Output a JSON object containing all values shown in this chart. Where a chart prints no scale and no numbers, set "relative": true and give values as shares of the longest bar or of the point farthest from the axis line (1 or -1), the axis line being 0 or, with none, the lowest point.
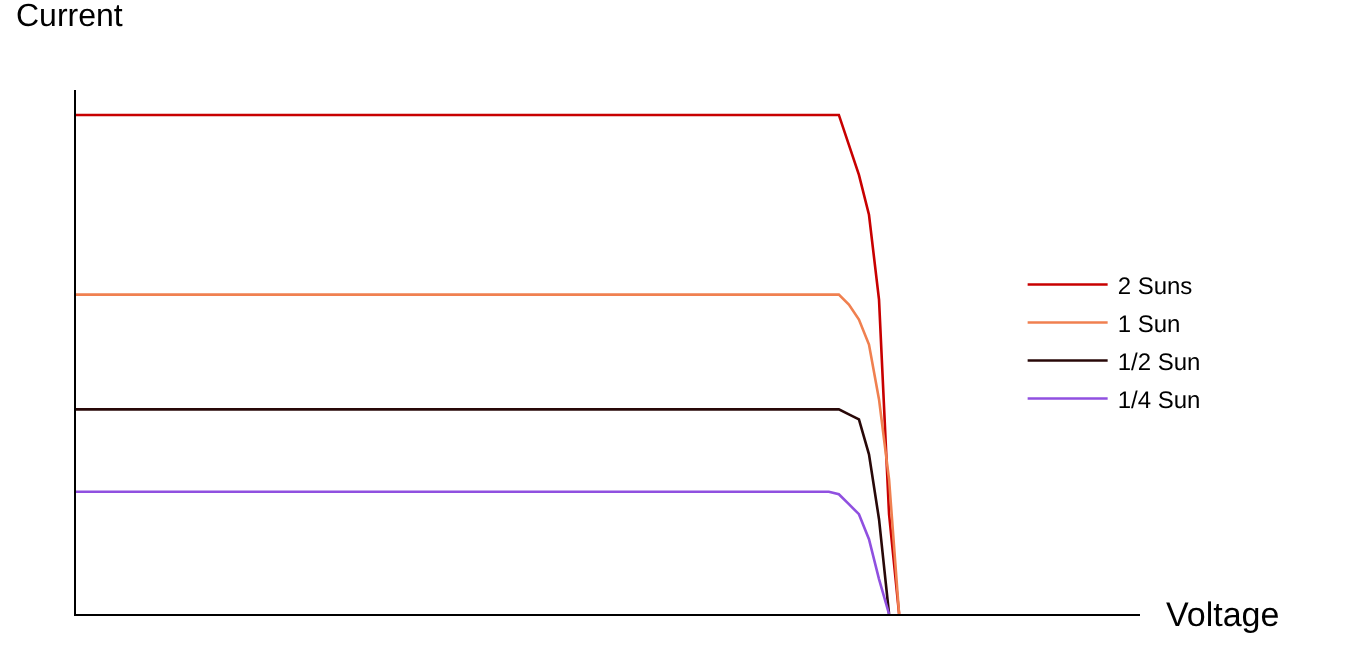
{
  "chart_data": {
    "type": "line",
    "relative": true,
    "xlabel": "Voltage",
    "ylabel": "Current",
    "legend": "right",
    "marker": "none",
    "line_style": "solid",
    "categories": [
      null,
      null,
      null,
      null,
      null,
      null,
      null,
      null,
      null,
      null,
      null,
      null,
      null,
      null,
      null,
      null,
      null,
      null,
      null,
      null,
      null,
      null,
      null,
      null,
      null,
      null,
      null,
      null,
      null,
      null,
      null,
      null,
      null,
      null,
      null,
      null,
      null,
      null,
      null,
      null,
      null,
      null,
      null,
      null,
      null,
      null,
      null,
      null,
      null,
      null,
      null,
      null,
      null,
      null,
      null,
      null,
      null,
      null,
      null,
      null,
      null,
      null,
      null,
      null,
      null,
      null,
      null,
      null,
      null,
      null,
      null,
      null,
      null,
      null,
      null,
      null,
      null,
      null,
      null,
      null,
      null,
      null,
      null,
      null,
      null,
      null,
      null,
      null,
      null,
      null,
      null,
      null,
      null,
      null,
      null,
      null,
      null,
      null,
      null,
      null,
      null,
      null,
      null,
      null,
      null,
      null,
      null
    ],
    "series": [
      {
        "name": "2 Suns",
        "color": "#c80000",
        "values": [
          1,
          1,
          1,
          1,
          1,
          1,
          1,
          1,
          1,
          1,
          1,
          1,
          1,
          1,
          1,
          1,
          1,
          1,
          1,
          1,
          1,
          1,
          1,
          1,
          1,
          1,
          1,
          1,
          1,
          1,
          1,
          1,
          1,
          1,
          1,
          1,
          1,
          1,
          1,
          1,
          1,
          1,
          1,
          1,
          1,
          1,
          1,
          1,
          1,
          1,
          1,
          1,
          1,
          1,
          1,
          1,
          1,
          1,
          1,
          1,
          1,
          1,
          1,
          1,
          1,
          1,
          1,
          1,
          1,
          1,
          1,
          1,
          1,
          1,
          1,
          1,
          1,
          0.94,
          0.88,
          0.8,
          0.63,
          0.2,
          0,
          null,
          null,
          null,
          null,
          null,
          null,
          null,
          null,
          null,
          null,
          null,
          null,
          null,
          null,
          null,
          null,
          null,
          null,
          null,
          null,
          null,
          null,
          null,
          null
        ]
      },
      {
        "name": "1 Sun",
        "color": "#f08050",
        "values": [
          0.64,
          0.64,
          0.64,
          0.64,
          0.64,
          0.64,
          0.64,
          0.64,
          0.64,
          0.64,
          0.64,
          0.64,
          0.64,
          0.64,
          0.64,
          0.64,
          0.64,
          0.64,
          0.64,
          0.64,
          0.64,
          0.64,
          0.64,
          0.64,
          0.64,
          0.64,
          0.64,
          0.64,
          0.64,
          0.64,
          0.64,
          0.64,
          0.64,
          0.64,
          0.64,
          0.64,
          0.64,
          0.64,
          0.64,
          0.64,
          0.64,
          0.64,
          0.64,
          0.64,
          0.64,
          0.64,
          0.64,
          0.64,
          0.64,
          0.64,
          0.64,
          0.64,
          0.64,
          0.64,
          0.64,
          0.64,
          0.64,
          0.64,
          0.64,
          0.64,
          0.64,
          0.64,
          0.64,
          0.64,
          0.64,
          0.64,
          0.64,
          0.64,
          0.64,
          0.64,
          0.64,
          0.64,
          0.64,
          0.64,
          0.64,
          0.64,
          0.64,
          0.62,
          0.59,
          0.54,
          0.43,
          0.27,
          0,
          null,
          null,
          null,
          null,
          null,
          null,
          null,
          null,
          null,
          null,
          null,
          null,
          null,
          null,
          null,
          null,
          null,
          null,
          null,
          null,
          null,
          null,
          null,
          null
        ]
      },
      {
        "name": "1/2 Sun",
        "color": "#280808",
        "values": [
          0.41,
          0.41,
          0.41,
          0.41,
          0.41,
          0.41,
          0.41,
          0.41,
          0.41,
          0.41,
          0.41,
          0.41,
          0.41,
          0.41,
          0.41,
          0.41,
          0.41,
          0.41,
          0.41,
          0.41,
          0.41,
          0.41,
          0.41,
          0.41,
          0.41,
          0.41,
          0.41,
          0.41,
          0.41,
          0.41,
          0.41,
          0.41,
          0.41,
          0.41,
          0.41,
          0.41,
          0.41,
          0.41,
          0.41,
          0.41,
          0.41,
          0.41,
          0.41,
          0.41,
          0.41,
          0.41,
          0.41,
          0.41,
          0.41,
          0.41,
          0.41,
          0.41,
          0.41,
          0.41,
          0.41,
          0.41,
          0.41,
          0.41,
          0.41,
          0.41,
          0.41,
          0.41,
          0.41,
          0.41,
          0.41,
          0.41,
          0.41,
          0.41,
          0.41,
          0.41,
          0.41,
          0.41,
          0.41,
          0.41,
          0.41,
          0.41,
          0.41,
          0.4,
          0.39,
          0.32,
          0.19,
          0,
          null,
          null,
          null,
          null,
          null,
          null,
          null,
          null,
          null,
          null,
          null,
          null,
          null,
          null,
          null,
          null,
          null,
          null,
          null,
          null,
          null,
          null,
          null,
          null,
          null
        ]
      },
      {
        "name": "1/4 Sun",
        "color": "#9050e0",
        "values": [
          0.245,
          0.245,
          0.245,
          0.245,
          0.245,
          0.245,
          0.245,
          0.245,
          0.245,
          0.245,
          0.245,
          0.245,
          0.245,
          0.245,
          0.245,
          0.245,
          0.245,
          0.245,
          0.245,
          0.245,
          0.245,
          0.245,
          0.245,
          0.245,
          0.245,
          0.245,
          0.245,
          0.245,
          0.245,
          0.245,
          0.245,
          0.245,
          0.245,
          0.245,
          0.245,
          0.245,
          0.245,
          0.245,
          0.245,
          0.245,
          0.245,
          0.245,
          0.245,
          0.245,
          0.245,
          0.245,
          0.245,
          0.245,
          0.245,
          0.245,
          0.245,
          0.245,
          0.245,
          0.245,
          0.245,
          0.245,
          0.245,
          0.245,
          0.245,
          0.245,
          0.245,
          0.245,
          0.245,
          0.245,
          0.245,
          0.245,
          0.245,
          0.245,
          0.245,
          0.245,
          0.245,
          0.245,
          0.245,
          0.245,
          0.245,
          0.245,
          0.24,
          0.22,
          0.2,
          0.15,
          0.07,
          0,
          null,
          null,
          null,
          null,
          null,
          null,
          null,
          null,
          null,
          null,
          null,
          null,
          null,
          null,
          null,
          null,
          null,
          null,
          null,
          null,
          null,
          null,
          null,
          null,
          null
        ]
      }
    ]
  }
}
